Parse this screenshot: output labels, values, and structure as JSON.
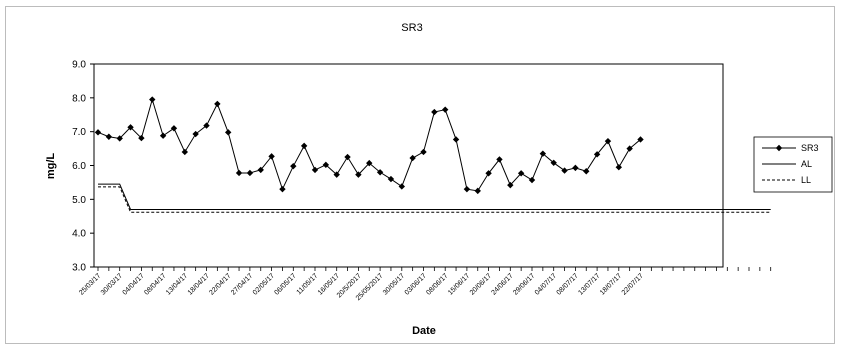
{
  "chart_data": {
    "type": "line",
    "title": "SR3",
    "xlabel": "Date",
    "ylabel": "mg/L",
    "ylim": [
      3.0,
      9.0
    ],
    "ytick_step": 1.0,
    "grid": false,
    "legend_position": "right",
    "ytick_labels": [
      "3.0",
      "4.0",
      "5.0",
      "6.0",
      "7.0",
      "8.0",
      "9.0"
    ],
    "x_tick_labels": [
      "25/03/17",
      "30/03/17",
      "04/04/17",
      "08/04/17",
      "13/04/17",
      "18/04/17",
      "22/04/17",
      "27/04/17",
      "02/05/17",
      "06/05/17",
      "11/05/17",
      "16/05/17",
      "20/5/2017",
      "25/05/2017",
      "30/05/17",
      "03/06/17",
      "08/06/17",
      "15/06/17",
      "20/06/17",
      "24/06/17",
      "29/06/17",
      "04/07/17",
      "08/07/17",
      "13/07/17",
      "18/07/17",
      "22/07/17"
    ],
    "series": [
      {
        "name": "SR3",
        "marker": "diamond",
        "style": "solid",
        "values": [
          6.98,
          6.85,
          6.8,
          7.13,
          6.81,
          7.95,
          6.88,
          7.1,
          6.4,
          6.93,
          7.18,
          7.82,
          6.98,
          5.78,
          5.78,
          5.87,
          6.27,
          5.3,
          5.98,
          6.58,
          5.87,
          6.02,
          5.73,
          6.25,
          5.73,
          6.07,
          5.8,
          5.6,
          5.38,
          6.22,
          6.4,
          7.58,
          7.65,
          6.77,
          5.3,
          5.25,
          5.77,
          6.18,
          5.42,
          5.77,
          5.57,
          6.35,
          6.08,
          5.85,
          5.93,
          5.83,
          6.33,
          6.72,
          5.95,
          6.5,
          6.77
        ]
      },
      {
        "name": "AL",
        "marker": "none",
        "style": "solid",
        "values": [
          5.45,
          5.45,
          5.45,
          4.7,
          4.7,
          4.7,
          4.7,
          4.7,
          4.7,
          4.7,
          4.7,
          4.7,
          4.7,
          4.7,
          4.7,
          4.7,
          4.7,
          4.7,
          4.7,
          4.7,
          4.7,
          4.7,
          4.7,
          4.7,
          4.7,
          4.7,
          4.7,
          4.7,
          4.7,
          4.7,
          4.7,
          4.7,
          4.7,
          4.7,
          4.7,
          4.7,
          4.7,
          4.7,
          4.7,
          4.7,
          4.7,
          4.7,
          4.7,
          4.7,
          4.7,
          4.7,
          4.7,
          4.7,
          4.7,
          4.7,
          4.7,
          4.7,
          4.7,
          4.7,
          4.7,
          4.7,
          4.7,
          4.7,
          4.7,
          4.7,
          4.7,
          4.7,
          4.7
        ]
      },
      {
        "name": "LL",
        "marker": "none",
        "style": "dashed",
        "values": [
          5.37,
          5.37,
          5.37,
          4.62,
          4.62,
          4.62,
          4.62,
          4.62,
          4.62,
          4.62,
          4.62,
          4.62,
          4.62,
          4.62,
          4.62,
          4.62,
          4.62,
          4.62,
          4.62,
          4.62,
          4.62,
          4.62,
          4.62,
          4.62,
          4.62,
          4.62,
          4.62,
          4.62,
          4.62,
          4.62,
          4.62,
          4.62,
          4.62,
          4.62,
          4.62,
          4.62,
          4.62,
          4.62,
          4.62,
          4.62,
          4.62,
          4.62,
          4.62,
          4.62,
          4.62,
          4.62,
          4.62,
          4.62,
          4.62,
          4.62,
          4.62,
          4.62,
          4.62,
          4.62,
          4.62,
          4.62,
          4.62,
          4.62,
          4.62,
          4.62,
          4.62,
          4.62,
          4.62
        ]
      }
    ]
  }
}
